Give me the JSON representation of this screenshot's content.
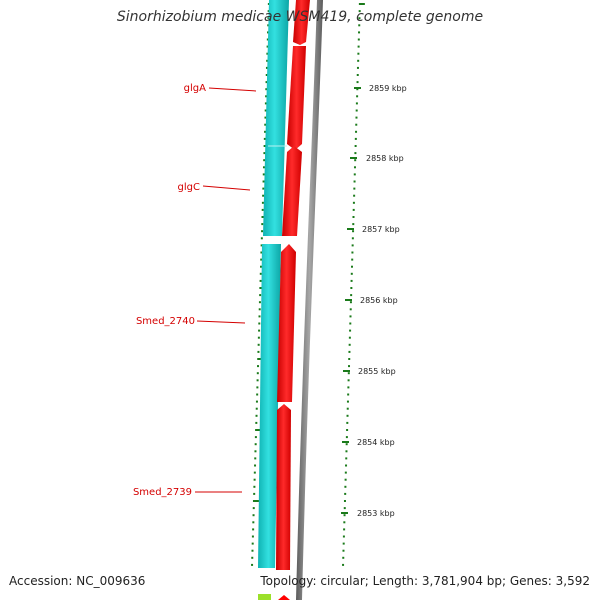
{
  "title": "Sinorhizobium medicae WSM419, complete genome",
  "footer": {
    "accession": "Accession: NC_009636",
    "summary": "Topology: circular; Length: 3,781,904 bp; Genes: 3,592"
  },
  "gene_labels": [
    {
      "name": "glgA"
    },
    {
      "name": "glgC"
    },
    {
      "name": "Smed_2740"
    },
    {
      "name": "Smed_2739"
    }
  ],
  "scale_ticks": [
    "2859 kbp",
    "2858 kbp",
    "2857 kbp",
    "2856 kbp",
    "2855 kbp",
    "2854 kbp",
    "2853 kbp"
  ],
  "colors": {
    "gene_track": "#ff0000",
    "cds_track": "#19c8c8",
    "backbone": "#7a7a7a",
    "ticks": "#1a7a1a",
    "labels": "#d40000",
    "bottom_feature": "#9be02a"
  }
}
